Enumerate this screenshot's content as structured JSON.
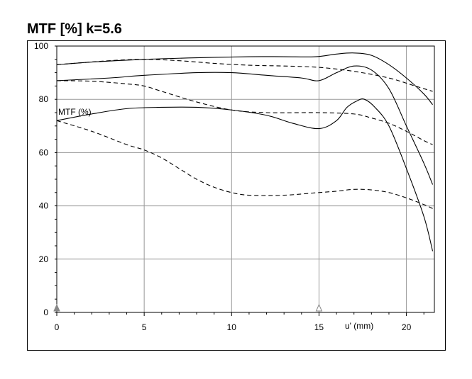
{
  "title": "MTF [%] k=5.6",
  "chart_data": {
    "type": "line",
    "title": "MTF [%] k=5.6",
    "xlabel": "u' (mm)",
    "ylabel": "",
    "inner_label": "MTF (%)",
    "xlim": [
      0,
      21.6
    ],
    "ylim": [
      0,
      100
    ],
    "x_ticks": [
      0,
      5,
      10,
      15,
      20
    ],
    "y_ticks": [
      0,
      20,
      40,
      60,
      80,
      100
    ],
    "grid": true,
    "markers": [
      {
        "x": 0,
        "style": "filled-triangle"
      },
      {
        "x": 15,
        "style": "open-triangle"
      }
    ],
    "series": [
      {
        "style": "solid",
        "points": [
          [
            0,
            93
          ],
          [
            2,
            94
          ],
          [
            5,
            95
          ],
          [
            8,
            95.6
          ],
          [
            11,
            96
          ],
          [
            13,
            96
          ],
          [
            14.8,
            96
          ],
          [
            16,
            97
          ],
          [
            17,
            97.4
          ],
          [
            18,
            96.5
          ],
          [
            19,
            93
          ],
          [
            20,
            88
          ],
          [
            21,
            82
          ],
          [
            21.5,
            78
          ]
        ]
      },
      {
        "style": "dashed",
        "points": [
          [
            0,
            93
          ],
          [
            3,
            94.5
          ],
          [
            5,
            95
          ],
          [
            7,
            94.5
          ],
          [
            9,
            93.5
          ],
          [
            11,
            92.8
          ],
          [
            13,
            92.5
          ],
          [
            15,
            92
          ],
          [
            17,
            90.5
          ],
          [
            19,
            88
          ],
          [
            20.5,
            85
          ],
          [
            21.5,
            83
          ]
        ]
      },
      {
        "style": "solid",
        "points": [
          [
            0,
            87
          ],
          [
            3,
            88
          ],
          [
            5,
            89
          ],
          [
            8,
            90
          ],
          [
            10,
            90
          ],
          [
            12,
            89
          ],
          [
            14,
            88
          ],
          [
            15,
            87
          ],
          [
            16,
            90
          ],
          [
            17,
            92.5
          ],
          [
            18,
            91
          ],
          [
            19,
            84
          ],
          [
            20,
            70
          ],
          [
            21,
            56
          ],
          [
            21.5,
            48
          ]
        ]
      },
      {
        "style": "dashed",
        "points": [
          [
            0,
            87
          ],
          [
            2,
            86.8
          ],
          [
            4,
            85.8
          ],
          [
            5,
            85
          ],
          [
            6,
            83
          ],
          [
            8,
            79
          ],
          [
            10,
            76
          ],
          [
            12,
            75
          ],
          [
            15,
            75
          ],
          [
            17,
            74.5
          ],
          [
            18,
            73
          ],
          [
            19,
            71
          ],
          [
            20,
            68
          ],
          [
            21,
            64.5
          ],
          [
            21.5,
            63
          ]
        ]
      },
      {
        "style": "solid",
        "points": [
          [
            0,
            72
          ],
          [
            2,
            74.5
          ],
          [
            4,
            76.5
          ],
          [
            6,
            77
          ],
          [
            8,
            77
          ],
          [
            10,
            76
          ],
          [
            12,
            74
          ],
          [
            13.5,
            71
          ],
          [
            15,
            69
          ],
          [
            16,
            72
          ],
          [
            16.6,
            77
          ],
          [
            17.2,
            79.5
          ],
          [
            17.6,
            80
          ],
          [
            18.2,
            77
          ],
          [
            19,
            70
          ],
          [
            20,
            54
          ],
          [
            21,
            36
          ],
          [
            21.5,
            23
          ]
        ]
      },
      {
        "style": "dashed",
        "points": [
          [
            0,
            72
          ],
          [
            2,
            68
          ],
          [
            4,
            63
          ],
          [
            5,
            61
          ],
          [
            6,
            58
          ],
          [
            7,
            54
          ],
          [
            8,
            50
          ],
          [
            9,
            47
          ],
          [
            10,
            45
          ],
          [
            11,
            44
          ],
          [
            13,
            44
          ],
          [
            15,
            45
          ],
          [
            16,
            45.5
          ],
          [
            17,
            46.2
          ],
          [
            18,
            46
          ],
          [
            19,
            45
          ],
          [
            20,
            43
          ],
          [
            21,
            40.5
          ],
          [
            21.5,
            39
          ]
        ]
      }
    ]
  }
}
